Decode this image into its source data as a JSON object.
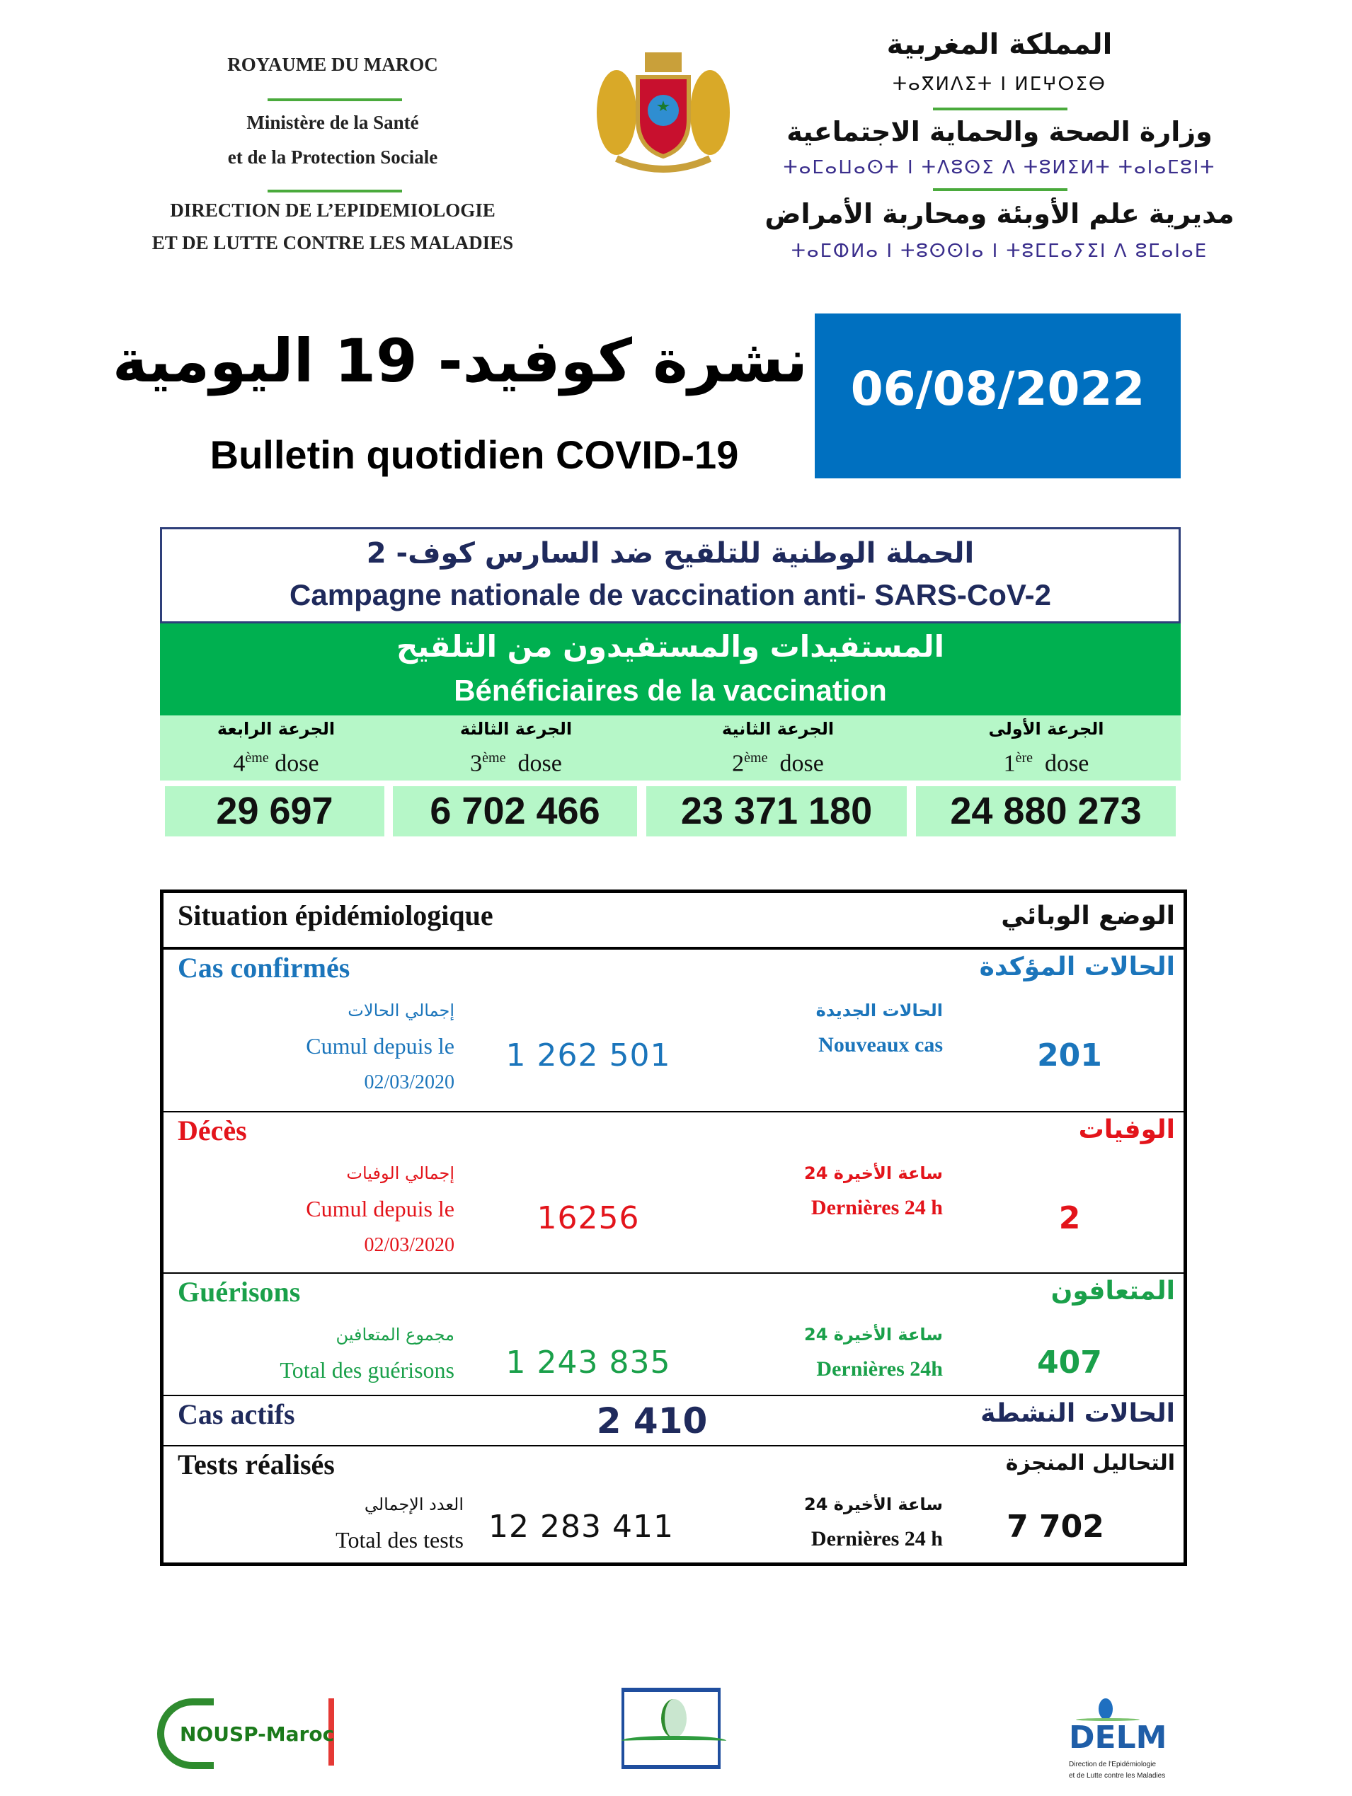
{
  "header": {
    "left": {
      "kingdom": "ROYAUME DU MAROC",
      "ministry_1": "Ministère de la Santé",
      "ministry_2": "et de la Protection Sociale",
      "direction_1": "DIRECTION DE L’EPIDEMIOLOGIE",
      "direction_2": "ET DE LUTTE CONTRE LES MALADIES"
    },
    "right": {
      "kingdom_ar": "المملكة المغربية",
      "kingdom_tf": "ⵜⴰⴳⵍⴷⵉⵜ ⵏ ⵍⵎⵖⵔⵉⴱ",
      "ministry_ar": "وزارة الصحة والحماية الاجتماعية",
      "ministry_tf": "ⵜⴰⵎⴰⵡⴰⵙⵜ ⵏ ⵜⴷⵓⵙⵉ ⴷ ⵜⵓⵍⵉⵍⵜ ⵜⴰⵏⴰⵎⵓⵏⵜ",
      "direction_ar": "مديرية علم الأوبئة ومحاربة الأمراض",
      "direction_tf": "ⵜⴰⵎⵀⵍⴰ ⵏ ⵜⵓⵙⵙⵏⴰ ⵏ ⵜⵓⵎⵎⴰⵢⵉⵏ ⴷ ⵓⵎⴰⵏⴰⴹ"
    },
    "emblem": "moroccan-coat-of-arms"
  },
  "title": {
    "ar": "نشرة كوفيد- 19 اليومية",
    "fr": "Bulletin quotidien COVID-19",
    "date": "06/08/2022"
  },
  "vaccination": {
    "title_ar": "الحملة الوطنية للتلقيح ضد السارس كوف- 2",
    "title_fr": "Campagne nationale de vaccination anti- SARS-CoV-2",
    "beneficiaries_ar": "المستفيدات والمستفيدون من التلقيح",
    "beneficiaries_fr": "Bénéficiaires de la vaccination",
    "doses": [
      {
        "label_ar": "الجرعة الرابعة",
        "num": "4",
        "sup": "ème",
        "word": "dose",
        "value": "29 697"
      },
      {
        "label_ar": "الجرعة الثالثة",
        "num": "3",
        "sup": "ème",
        "word": "dose",
        "value": "6 702 466"
      },
      {
        "label_ar": "الجرعة الثانية",
        "num": "2",
        "sup": "ème",
        "word": "dose",
        "value": "23 371 180"
      },
      {
        "label_ar": "الجرعة الأولى",
        "num": "1",
        "sup": "ère",
        "word": "dose",
        "value": "24 880 273"
      }
    ],
    "colors": {
      "navy": "#1f2a5c",
      "green": "#00b050",
      "light_green": "#b6f7c8"
    }
  },
  "situation": {
    "title_fr": "Situation épidémiologique",
    "title_ar": "الوضع الوبائي",
    "confirmed": {
      "fr": "Cas confirmés",
      "ar": "الحالات المؤكدة",
      "cum_ar": "إجمالي الحالات",
      "cum_fr": "Cumul depuis le",
      "cum_date": "02/03/2020",
      "cum_value": "1 262 501",
      "new_ar": "الحالات الجديدة",
      "new_fr": "Nouveaux cas",
      "new_value": "201",
      "color": "#1b75bb"
    },
    "deaths": {
      "fr": "Décès",
      "ar": "الوفيات",
      "cum_ar": "إجمالي الوفيات",
      "cum_fr": "Cumul depuis le",
      "cum_date": "02/03/2020",
      "cum_value": "16256",
      "new_ar": "24 ساعة الأخيرة",
      "new_fr": "Dernières 24 h",
      "new_value": "2",
      "color": "#e3141b"
    },
    "recovered": {
      "fr": "Guérisons",
      "ar": "المتعافون",
      "cum_ar": "مجموع المتعافين",
      "cum_fr": "Total des guérisons",
      "cum_value": "1 243 835",
      "new_ar": "24 ساعة الأخيرة",
      "new_fr": "Dernières 24h",
      "new_value": "407",
      "color": "#1aa04a"
    },
    "active": {
      "fr": "Cas actifs",
      "ar": "الحالات النشطة",
      "value": "2 410",
      "color": "#1f2a5c"
    },
    "tests": {
      "fr": "Tests réalisés",
      "ar": "التحاليل المنجزة",
      "cum_ar": "العدد الإجمالي",
      "cum_fr": "Total des tests",
      "cum_value": "12 283 411",
      "new_ar": "24 ساعة الأخيرة",
      "new_fr": "Dernières 24 h",
      "new_value": "7 702"
    }
  },
  "footer": {
    "nousp": "NOUSP-Maroc",
    "delm": "DELM",
    "delm_sub_1": "Direction de l'Epidémiologie",
    "delm_sub_2": "et de Lutte contre les Maladies"
  }
}
